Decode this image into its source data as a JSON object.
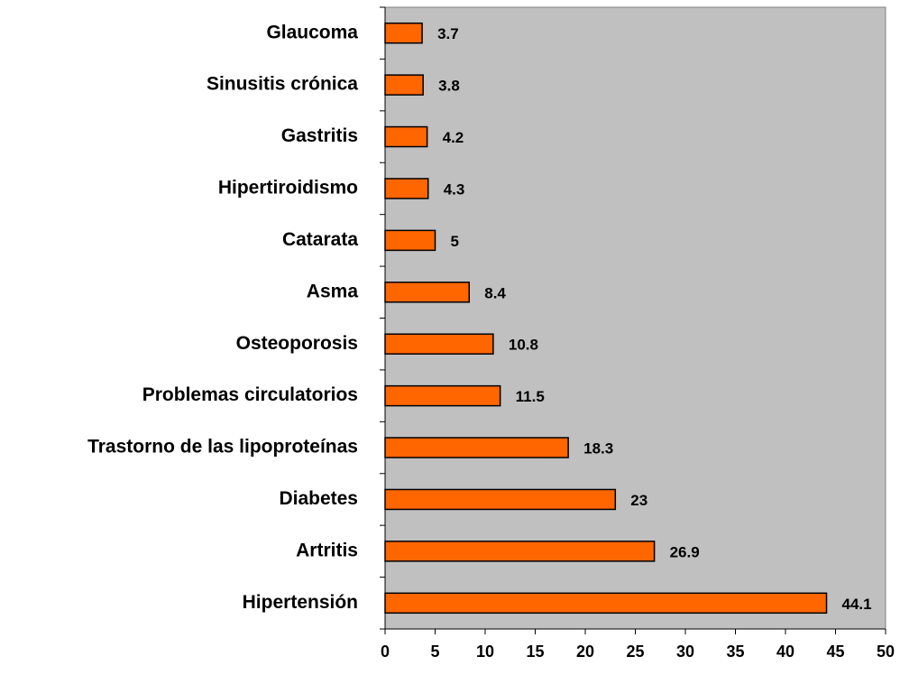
{
  "chart_data": {
    "type": "bar",
    "orientation": "horizontal",
    "categories": [
      "Glaucoma",
      "Sinusitis crónica",
      "Gastritis",
      "Hipertiroidismo",
      "Catarata",
      "Asma",
      "Osteoporosis",
      "Problemas circulatorios",
      "Trastorno de las lipoproteínas",
      "Diabetes",
      "Artritis",
      "Hipertensión"
    ],
    "values": [
      3.7,
      3.8,
      4.2,
      4.3,
      5,
      8.4,
      10.8,
      11.5,
      18.3,
      23,
      26.9,
      44.1
    ],
    "color": "#ff6600",
    "background": "#c0c0c0",
    "xlim": [
      0,
      50
    ],
    "xticks": [
      0,
      5,
      10,
      15,
      20,
      25,
      30,
      35,
      40,
      45,
      50
    ],
    "grid": false
  }
}
